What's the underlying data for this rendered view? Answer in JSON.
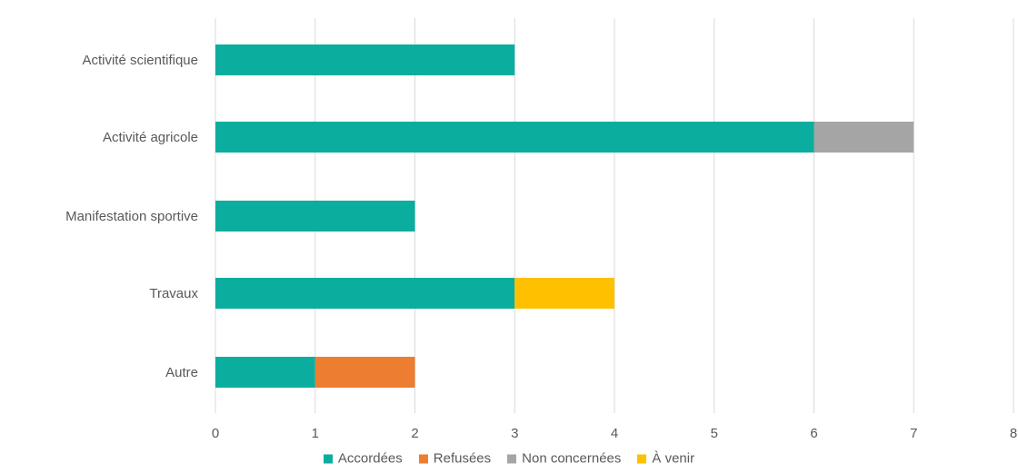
{
  "chart_data": {
    "type": "bar",
    "orientation": "horizontal",
    "stacked": true,
    "categories": [
      "Activité scientifique",
      "Activité agricole",
      "Manifestation sportive",
      "Travaux",
      "Autre"
    ],
    "series": [
      {
        "name": "Accordées",
        "color": "#0BAE9E",
        "values": [
          3,
          6,
          2,
          3,
          1
        ]
      },
      {
        "name": "Refusées",
        "color": "#ED7D31",
        "values": [
          0,
          0,
          0,
          0,
          1
        ]
      },
      {
        "name": "Non concernées",
        "color": "#A5A5A5",
        "values": [
          0,
          1,
          0,
          0,
          0
        ]
      },
      {
        "name": "À venir",
        "color": "#FFC000",
        "values": [
          0,
          0,
          0,
          1,
          0
        ]
      }
    ],
    "xlim": [
      0,
      8
    ],
    "xticks": [
      "0",
      "1",
      "2",
      "3",
      "4",
      "5",
      "6",
      "7",
      "8"
    ],
    "grid": true,
    "legend_position": "bottom"
  }
}
